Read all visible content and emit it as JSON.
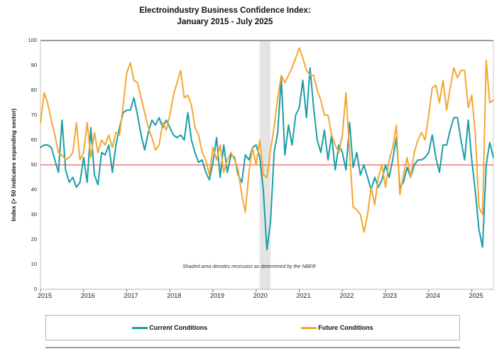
{
  "title": {
    "line1": "Electroindustry Business Confidence Index:",
    "line2": "January 2015 - July 2025"
  },
  "y_axis": {
    "label": "Index (> 50 indicates expanding sector)",
    "min": 0,
    "max": 100,
    "ticks": [
      0,
      10,
      20,
      30,
      40,
      50,
      60,
      70,
      80,
      90,
      100
    ]
  },
  "x_axis": {
    "tick_labels": [
      "2015",
      "2016",
      "2017",
      "2018",
      "2019",
      "2020",
      "2021",
      "2022",
      "2023",
      "2024",
      "2025"
    ]
  },
  "reference_line": {
    "value": 50,
    "color": "#e85d5d"
  },
  "recession_band": {
    "start_month": "2020-02",
    "end_month": "2020-04",
    "start_index": 61,
    "end_index": 64,
    "color": "#e4e4e4"
  },
  "annotation": "Shaded area denotes recession as determined by the NBER",
  "legend": [
    {
      "label": "Current Conditions",
      "color": "#1a9ea6"
    },
    {
      "label": "Future Conditions",
      "color": "#f5a632"
    }
  ],
  "chart_data": {
    "type": "line",
    "title": "Electroindustry Business Confidence Index: January 2015 - July 2025",
    "xlabel": "",
    "ylabel": "Index (> 50 indicates expanding sector)",
    "ylim": [
      0,
      100
    ],
    "x_start": "2015-01",
    "x_end": "2025-07",
    "frequency": "monthly",
    "n_points": 127,
    "grid": false,
    "legend_position": "bottom",
    "series": [
      {
        "name": "Current Conditions",
        "color": "#1a9ea6",
        "values": [
          57,
          58,
          58,
          57,
          52,
          47,
          68,
          48,
          43,
          45,
          41,
          43,
          53,
          43,
          65,
          46,
          42,
          55,
          54,
          58,
          47,
          58,
          65,
          71,
          72,
          72,
          77,
          70,
          62,
          56,
          63,
          68,
          66,
          69,
          65,
          68,
          65,
          62,
          61,
          62,
          60,
          71,
          60,
          55,
          51,
          52,
          47,
          44,
          51,
          61,
          45,
          58,
          47,
          54,
          53,
          46,
          43,
          54,
          52,
          57,
          58,
          53,
          40,
          16,
          27,
          55,
          63,
          85,
          54,
          66,
          58,
          70,
          73,
          84,
          69,
          89,
          73,
          60,
          55,
          64,
          52,
          62,
          48,
          58,
          55,
          48,
          67,
          49,
          55,
          46,
          50,
          45,
          40,
          45,
          41,
          44,
          50,
          45,
          52,
          61,
          41,
          43,
          49,
          45,
          50,
          52,
          52,
          53,
          55,
          62,
          53,
          47,
          58,
          58,
          64,
          69,
          69,
          60,
          52,
          68,
          52,
          39,
          24,
          17,
          50,
          59,
          53
        ]
      },
      {
        "name": "Future Conditions",
        "color": "#f5a632",
        "values": [
          67,
          79,
          75,
          68,
          62,
          55,
          54,
          52,
          53,
          55,
          67,
          52,
          55,
          67,
          53,
          63,
          55,
          60,
          58,
          62,
          57,
          63,
          62,
          74,
          87,
          91,
          84,
          83,
          77,
          71,
          65,
          61,
          56,
          58,
          67,
          64,
          70,
          78,
          83,
          88,
          77,
          78,
          74,
          65,
          62,
          55,
          52,
          46,
          57,
          52,
          58,
          47,
          52,
          55,
          52,
          48,
          38,
          31,
          47,
          57,
          50,
          60,
          46,
          45,
          56,
          65,
          77,
          86,
          83,
          86,
          89,
          93,
          97,
          93,
          88,
          86,
          86,
          80,
          76,
          70,
          70,
          62,
          58,
          55,
          62,
          79,
          55,
          33,
          32,
          30,
          23,
          30,
          41,
          34,
          45,
          50,
          41,
          52,
          57,
          66,
          38,
          46,
          53,
          45,
          55,
          60,
          63,
          60,
          70,
          81,
          82,
          75,
          84,
          72,
          81,
          89,
          85,
          88,
          88,
          73,
          78,
          62,
          33,
          30,
          92,
          75,
          76
        ]
      }
    ]
  }
}
